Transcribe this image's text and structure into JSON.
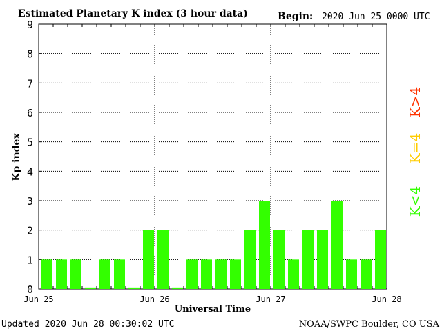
{
  "chart_data": {
    "type": "bar",
    "title": "Estimated Planetary K index (3 hour data)",
    "begin_label": "Begin:",
    "begin_value": "2020 Jun 25 0000 UTC",
    "ylabel": "Kp index",
    "xlabel": "Universal Time",
    "ylim": [
      0,
      9
    ],
    "yticks": [
      "0",
      "1",
      "2",
      "3",
      "4",
      "5",
      "6",
      "7",
      "8",
      "9"
    ],
    "xticks": [
      "Jun 25",
      "Jun 26",
      "Jun 27",
      "Jun 28"
    ],
    "grid": true,
    "bar_color": "#33ff00",
    "values": [
      1,
      1,
      1,
      0.05,
      1,
      1,
      0.05,
      2,
      2,
      0.05,
      1,
      1,
      1,
      1,
      2,
      3,
      2,
      1,
      2,
      2,
      3,
      1,
      1,
      2
    ],
    "legend": [
      {
        "label": "K>4",
        "color": "#ff3300"
      },
      {
        "label": "K=4",
        "color": "#ffcc00"
      },
      {
        "label": "K<4",
        "color": "#33ff00"
      }
    ]
  },
  "footer": {
    "updated": "Updated 2020 Jun 28 00:30:02 UTC",
    "source": "NOAA/SWPC Boulder, CO USA"
  }
}
